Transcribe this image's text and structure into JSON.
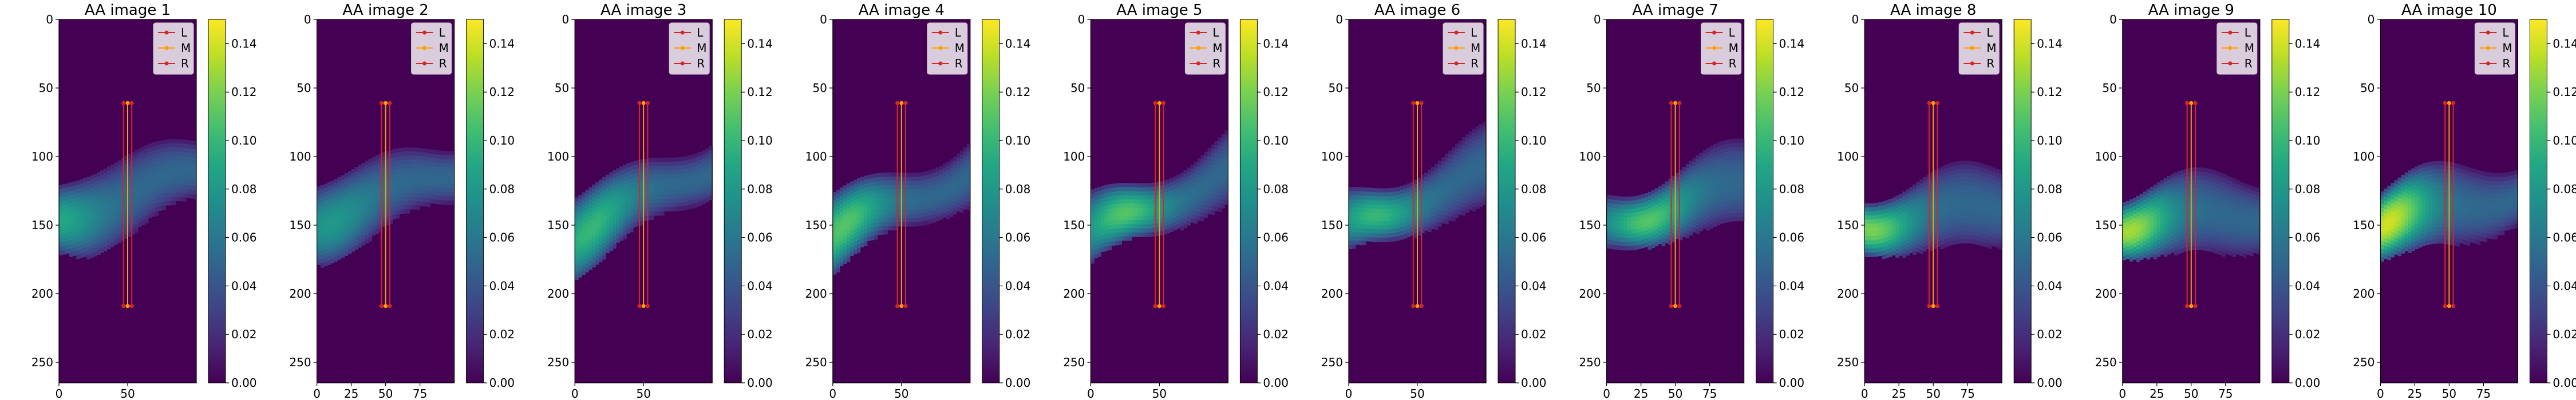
{
  "figure": {
    "colormap": "viridis",
    "background_color": "#440154"
  },
  "chart_data": [
    {
      "type": "heatmap",
      "title": "AA image 1",
      "xlim": [
        0,
        100
      ],
      "ylim": [
        265,
        0
      ],
      "xticks": [
        0,
        50
      ],
      "yticks": [
        0,
        50,
        100,
        150,
        200,
        250
      ],
      "colorbar": {
        "range": [
          0,
          0.15
        ],
        "ticks": [
          "0.00",
          "0.02",
          "0.04",
          "0.06",
          "0.08",
          "0.10",
          "0.12",
          "0.14"
        ]
      },
      "band": {
        "center_left": 145,
        "center_right": 110,
        "peak_x": 0,
        "peak_value": 0.09,
        "max_value": 0.1
      },
      "lines": [
        {
          "name": "L",
          "color": "#d62728",
          "x": 47,
          "y": [
            61,
            209
          ]
        },
        {
          "name": "M",
          "color": "#ff9f00",
          "x": 50,
          "y": [
            61,
            209
          ]
        },
        {
          "name": "R",
          "color": "#d62728",
          "x": 53,
          "y": [
            61,
            209
          ]
        }
      ],
      "legend": {
        "position": "upper right",
        "entries": [
          "L",
          "M",
          "R"
        ]
      }
    },
    {
      "type": "heatmap",
      "title": "AA image 2",
      "xlim": [
        0,
        100
      ],
      "ylim": [
        265,
        0
      ],
      "xticks": [
        0,
        25,
        50,
        75
      ],
      "yticks": [
        0,
        50,
        100,
        150,
        200,
        250
      ],
      "colorbar": {
        "range": [
          0,
          0.15
        ],
        "ticks": [
          "0.00",
          "0.02",
          "0.04",
          "0.06",
          "0.08",
          "0.10",
          "0.12",
          "0.14"
        ]
      },
      "band": {
        "center_left": 145,
        "center_right": 110,
        "peak_x": 10,
        "peak_value": 0.08,
        "max_value": 0.1
      },
      "lines": [
        {
          "name": "L",
          "color": "#d62728",
          "x": 47,
          "y": [
            61,
            209
          ]
        },
        {
          "name": "M",
          "color": "#ff9f00",
          "x": 50,
          "y": [
            61,
            209
          ]
        },
        {
          "name": "R",
          "color": "#d62728",
          "x": 53,
          "y": [
            61,
            209
          ]
        }
      ],
      "legend": {
        "position": "upper right",
        "entries": [
          "L",
          "M",
          "R"
        ]
      }
    },
    {
      "type": "heatmap",
      "title": "AA image 3",
      "xlim": [
        0,
        100
      ],
      "ylim": [
        265,
        0
      ],
      "xticks": [
        0,
        50
      ],
      "yticks": [
        0,
        50,
        100,
        150,
        200,
        250
      ],
      "colorbar": {
        "range": [
          0,
          0.15
        ],
        "ticks": [
          "0.00",
          "0.02",
          "0.04",
          "0.06",
          "0.08",
          "0.10",
          "0.12",
          "0.14"
        ]
      },
      "band": {
        "center_left": 155,
        "center_right": 105,
        "peak_x": 12,
        "peak_value": 0.1,
        "max_value": 0.12
      },
      "lines": [
        {
          "name": "L",
          "color": "#d62728",
          "x": 47,
          "y": [
            61,
            209
          ]
        },
        {
          "name": "M",
          "color": "#ff9f00",
          "x": 50,
          "y": [
            61,
            209
          ]
        },
        {
          "name": "R",
          "color": "#d62728",
          "x": 53,
          "y": [
            61,
            209
          ]
        }
      ],
      "legend": {
        "position": "upper right",
        "entries": [
          "L",
          "M",
          "R"
        ]
      }
    },
    {
      "type": "heatmap",
      "title": "AA image 4",
      "xlim": [
        0,
        100
      ],
      "ylim": [
        265,
        0
      ],
      "xticks": [
        0,
        50
      ],
      "yticks": [
        0,
        50,
        100,
        150,
        200,
        250
      ],
      "colorbar": {
        "range": [
          0,
          0.15
        ],
        "ticks": [
          "0.00",
          "0.02",
          "0.04",
          "0.06",
          "0.08",
          "0.10",
          "0.12",
          "0.14"
        ]
      },
      "band": {
        "center_left": 155,
        "center_right": 110,
        "peak_x": 8,
        "peak_value": 0.11,
        "max_value": 0.12
      },
      "lines": [
        {
          "name": "L",
          "color": "#d62728",
          "x": 47,
          "y": [
            61,
            209
          ]
        },
        {
          "name": "M",
          "color": "#ff9f00",
          "x": 50,
          "y": [
            61,
            209
          ]
        },
        {
          "name": "R",
          "color": "#d62728",
          "x": 53,
          "y": [
            61,
            209
          ]
        }
      ],
      "legend": {
        "position": "upper right",
        "entries": [
          "L",
          "M",
          "R"
        ]
      }
    },
    {
      "type": "heatmap",
      "title": "AA image 5",
      "xlim": [
        0,
        100
      ],
      "ylim": [
        265,
        0
      ],
      "xticks": [
        0,
        50
      ],
      "yticks": [
        0,
        50,
        100,
        150,
        200,
        250
      ],
      "colorbar": {
        "range": [
          0,
          0.15
        ],
        "ticks": [
          "0.00",
          "0.02",
          "0.04",
          "0.06",
          "0.08",
          "0.10",
          "0.12",
          "0.14"
        ]
      },
      "band": {
        "center_left": 155,
        "center_right": 110,
        "peak_x": 25,
        "peak_value": 0.11,
        "max_value": 0.12
      },
      "lines": [
        {
          "name": "L",
          "color": "#d62728",
          "x": 47,
          "y": [
            61,
            209
          ]
        },
        {
          "name": "M",
          "color": "#ff9f00",
          "x": 50,
          "y": [
            61,
            209
          ]
        },
        {
          "name": "R",
          "color": "#d62728",
          "x": 53,
          "y": [
            61,
            209
          ]
        }
      ],
      "legend": {
        "position": "upper right",
        "entries": [
          "L",
          "M",
          "R"
        ]
      }
    },
    {
      "type": "heatmap",
      "title": "AA image 6",
      "xlim": [
        0,
        100
      ],
      "ylim": [
        265,
        0
      ],
      "xticks": [
        0,
        50
      ],
      "yticks": [
        0,
        50,
        100,
        150,
        200,
        250
      ],
      "colorbar": {
        "range": [
          0,
          0.15
        ],
        "ticks": [
          "0.00",
          "0.02",
          "0.04",
          "0.06",
          "0.08",
          "0.10",
          "0.12",
          "0.14"
        ]
      },
      "band": {
        "center_left": 150,
        "center_right": 110,
        "peak_x": 20,
        "peak_value": 0.1,
        "max_value": 0.12
      },
      "lines": [
        {
          "name": "L",
          "color": "#d62728",
          "x": 47,
          "y": [
            61,
            209
          ]
        },
        {
          "name": "M",
          "color": "#ff9f00",
          "x": 50,
          "y": [
            61,
            209
          ]
        },
        {
          "name": "R",
          "color": "#d62728",
          "x": 53,
          "y": [
            61,
            209
          ]
        }
      ],
      "legend": {
        "position": "upper right",
        "entries": [
          "L",
          "M",
          "R"
        ]
      }
    },
    {
      "type": "heatmap",
      "title": "AA image 7",
      "xlim": [
        0,
        100
      ],
      "ylim": [
        265,
        0
      ],
      "xticks": [
        0,
        25,
        50,
        75
      ],
      "yticks": [
        0,
        50,
        100,
        150,
        200,
        250
      ],
      "colorbar": {
        "range": [
          0,
          0.15
        ],
        "ticks": [
          "0.00",
          "0.02",
          "0.04",
          "0.06",
          "0.08",
          "0.10",
          "0.12",
          "0.14"
        ]
      },
      "band": {
        "center_left": 148,
        "center_right": 120,
        "peak_x": 30,
        "peak_value": 0.11,
        "max_value": 0.12
      },
      "lines": [
        {
          "name": "L",
          "color": "#d62728",
          "x": 47,
          "y": [
            61,
            209
          ]
        },
        {
          "name": "M",
          "color": "#ff9f00",
          "x": 50,
          "y": [
            61,
            209
          ]
        },
        {
          "name": "R",
          "color": "#d62728",
          "x": 53,
          "y": [
            61,
            209
          ]
        }
      ],
      "legend": {
        "position": "upper right",
        "entries": [
          "L",
          "M",
          "R"
        ]
      }
    },
    {
      "type": "heatmap",
      "title": "AA image 8",
      "xlim": [
        0,
        100
      ],
      "ylim": [
        265,
        0
      ],
      "xticks": [
        0,
        25,
        50,
        75
      ],
      "yticks": [
        0,
        50,
        100,
        150,
        200,
        250
      ],
      "colorbar": {
        "range": [
          0,
          0.15
        ],
        "ticks": [
          "0.00",
          "0.02",
          "0.04",
          "0.06",
          "0.08",
          "0.10",
          "0.12",
          "0.14"
        ]
      },
      "band": {
        "center_left": 148,
        "center_right": 135,
        "peak_x": 5,
        "peak_value": 0.12,
        "max_value": 0.13
      },
      "lines": [
        {
          "name": "L",
          "color": "#d62728",
          "x": 47,
          "y": [
            61,
            209
          ]
        },
        {
          "name": "M",
          "color": "#ff9f00",
          "x": 50,
          "y": [
            61,
            209
          ]
        },
        {
          "name": "R",
          "color": "#d62728",
          "x": 53,
          "y": [
            61,
            209
          ]
        }
      ],
      "legend": {
        "position": "upper right",
        "entries": [
          "L",
          "M",
          "R"
        ]
      }
    },
    {
      "type": "heatmap",
      "title": "AA image 9",
      "xlim": [
        0,
        100
      ],
      "ylim": [
        265,
        0
      ],
      "xticks": [
        0,
        25,
        50,
        75
      ],
      "yticks": [
        0,
        50,
        100,
        150,
        200,
        250
      ],
      "colorbar": {
        "range": [
          0,
          0.15
        ],
        "ticks": [
          "0.00",
          "0.02",
          "0.04",
          "0.06",
          "0.08",
          "0.10",
          "0.12",
          "0.14"
        ]
      },
      "band": {
        "center_left": 148,
        "center_right": 140,
        "peak_x": 5,
        "peak_value": 0.13,
        "max_value": 0.14
      },
      "lines": [
        {
          "name": "L",
          "color": "#d62728",
          "x": 47,
          "y": [
            61,
            209
          ]
        },
        {
          "name": "M",
          "color": "#ff9f00",
          "x": 50,
          "y": [
            61,
            209
          ]
        },
        {
          "name": "R",
          "color": "#d62728",
          "x": 53,
          "y": [
            61,
            209
          ]
        }
      ],
      "legend": {
        "position": "upper right",
        "entries": [
          "L",
          "M",
          "R"
        ]
      }
    },
    {
      "type": "heatmap",
      "title": "AA image 10",
      "xlim": [
        0,
        100
      ],
      "ylim": [
        265,
        0
      ],
      "xticks": [
        0,
        25,
        50,
        75
      ],
      "yticks": [
        0,
        50,
        100,
        150,
        200,
        250
      ],
      "colorbar": {
        "range": [
          0,
          0.15
        ],
        "ticks": [
          "0.00",
          "0.02",
          "0.04",
          "0.06",
          "0.08",
          "0.10",
          "0.12",
          "0.14"
        ]
      },
      "band": {
        "center_left": 148,
        "center_right": 125,
        "peak_x": 5,
        "peak_value": 0.14,
        "max_value": 0.15
      },
      "lines": [
        {
          "name": "L",
          "color": "#d62728",
          "x": 47,
          "y": [
            61,
            209
          ]
        },
        {
          "name": "M",
          "color": "#ff9f00",
          "x": 50,
          "y": [
            61,
            209
          ]
        },
        {
          "name": "R",
          "color": "#d62728",
          "x": 53,
          "y": [
            61,
            209
          ]
        }
      ],
      "legend": {
        "position": "upper right",
        "entries": [
          "L",
          "M",
          "R"
        ]
      }
    }
  ]
}
